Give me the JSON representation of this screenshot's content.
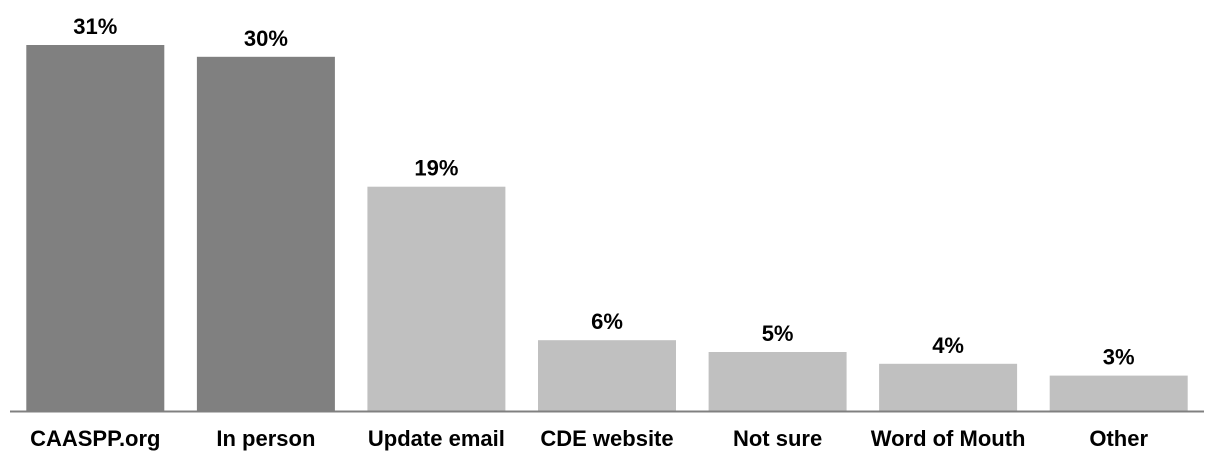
{
  "chart_data": {
    "type": "bar",
    "categories": [
      "CAASPP.org",
      "In person",
      "Update email",
      "CDE website",
      "Not sure",
      "Word of Mouth",
      "Other"
    ],
    "values": [
      31,
      30,
      19,
      6,
      5,
      4,
      3
    ],
    "value_labels": [
      "31%",
      "30%",
      "19%",
      "6%",
      "5%",
      "4%",
      "3%"
    ],
    "unit": "%",
    "ylim": [
      0,
      31
    ],
    "grid": false,
    "legend": "none",
    "colors": {
      "highlight": "#808080",
      "default": "#c0c0c0",
      "axis": "#808080"
    },
    "highlight_count": 2
  }
}
